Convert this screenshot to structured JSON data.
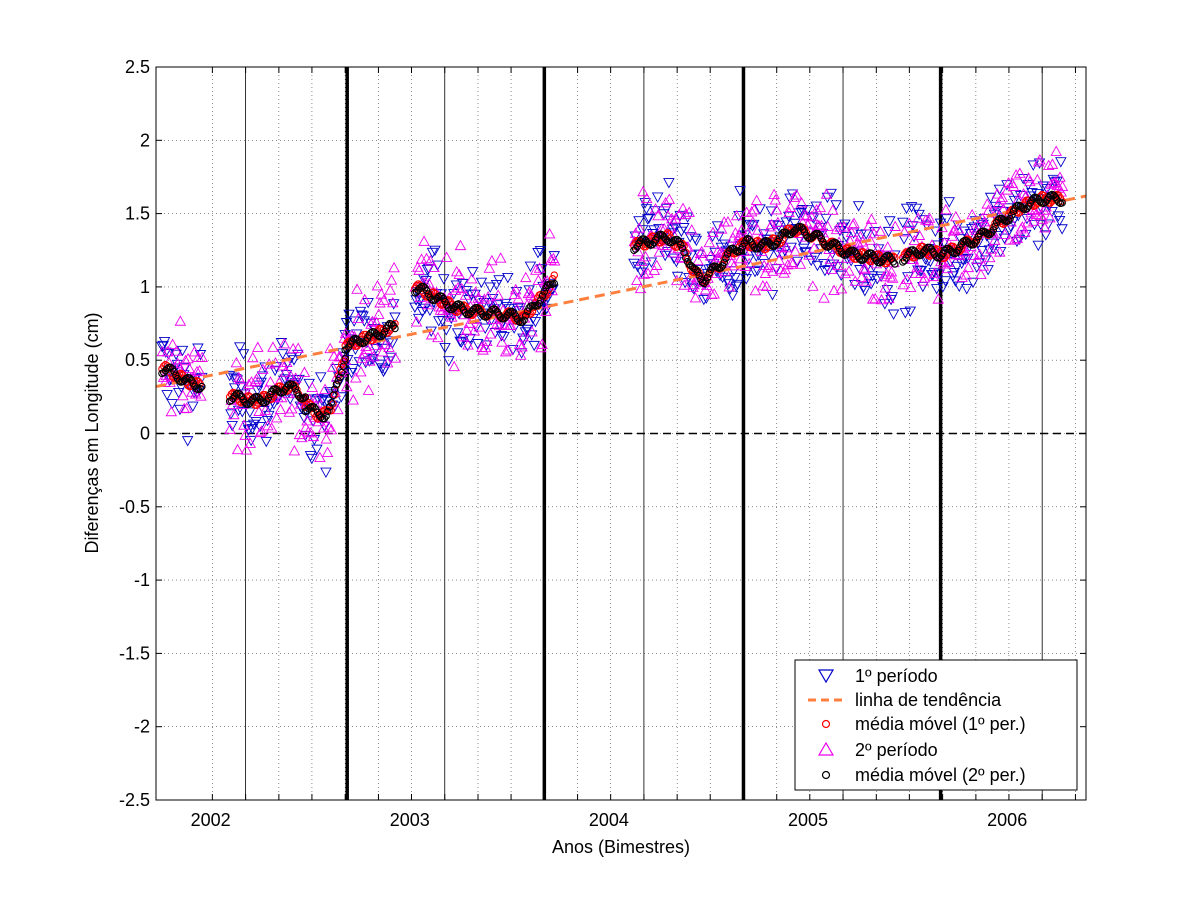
{
  "chart_data": {
    "type": "scatter",
    "xlabel": "Anos (Bimestres)",
    "ylabel": "Diferenças em Longitude (cm)",
    "xlim": [
      2001.55,
      2006.22
    ],
    "ylim": [
      -2.5,
      2.5
    ],
    "x_ticks": [
      {
        "value": 2001.833,
        "label": ""
      },
      {
        "value": 2002.0,
        "label": "2002"
      },
      {
        "value": 2002.167,
        "label": ""
      },
      {
        "value": 2002.333,
        "label": ""
      },
      {
        "value": 2002.5,
        "label": ""
      },
      {
        "value": 2002.667,
        "label": ""
      },
      {
        "value": 2002.833,
        "label": ""
      },
      {
        "value": 2003.0,
        "label": "2003"
      },
      {
        "value": 2003.167,
        "label": ""
      },
      {
        "value": 2003.333,
        "label": ""
      },
      {
        "value": 2003.5,
        "label": ""
      },
      {
        "value": 2003.667,
        "label": ""
      },
      {
        "value": 2003.833,
        "label": ""
      },
      {
        "value": 2004.0,
        "label": "2004"
      },
      {
        "value": 2004.167,
        "label": ""
      },
      {
        "value": 2004.333,
        "label": ""
      },
      {
        "value": 2004.5,
        "label": ""
      },
      {
        "value": 2004.667,
        "label": ""
      },
      {
        "value": 2004.833,
        "label": ""
      },
      {
        "value": 2005.0,
        "label": "2005"
      },
      {
        "value": 2005.167,
        "label": ""
      },
      {
        "value": 2005.333,
        "label": ""
      },
      {
        "value": 2005.5,
        "label": ""
      },
      {
        "value": 2005.667,
        "label": ""
      },
      {
        "value": 2005.833,
        "label": ""
      },
      {
        "value": 2006.0,
        "label": "2006"
      },
      {
        "value": 2006.167,
        "label": ""
      }
    ],
    "y_ticks": [
      "-2.5",
      "-2",
      "-1.5",
      "-1",
      "-0.5",
      "0",
      "0.5",
      "1",
      "1.5",
      "2",
      "2.5"
    ],
    "grid": true,
    "legend_position": "bottom-right",
    "colors": {
      "period1": "#0000cc",
      "period2": "#ee00ee",
      "trend": "#ff7f3f",
      "ma1": "#ff0000",
      "ma2": "#000000"
    },
    "legend": [
      {
        "label": "1º período",
        "marker": "triangle-down",
        "color": "#0000cc"
      },
      {
        "label": "linha de tendência",
        "marker": "dashed-line",
        "color": "#ff7f3f"
      },
      {
        "label": "média móvel (1º per.)",
        "marker": "circle",
        "color": "#ff0000"
      },
      {
        "label": "2º período",
        "marker": "triangle-up",
        "color": "#ee00ee"
      },
      {
        "label": "média móvel (2º per.)",
        "marker": "circle",
        "color": "#000000"
      }
    ],
    "reference_lines": {
      "zero_line": {
        "y": 0,
        "style": "dashed",
        "color": "#000000"
      },
      "vertical_markers": [
        2002.51,
        2003.5,
        2004.5,
        2005.49
      ]
    },
    "trend_line": {
      "x": [
        2001.55,
        2006.22
      ],
      "y": [
        0.32,
        1.62
      ]
    },
    "data_segments": [
      {
        "x": [
          2001.58,
          2001.78
        ],
        "ma": [
          [
            2001.6,
            0.44
          ],
          [
            2001.65,
            0.4
          ],
          [
            2001.7,
            0.36
          ],
          [
            2001.75,
            0.33
          ]
        ]
      },
      {
        "x": [
          2001.92,
          2002.3
        ],
        "ma": [
          [
            2001.95,
            0.25
          ],
          [
            2002.0,
            0.23
          ],
          [
            2002.05,
            0.22
          ],
          [
            2002.1,
            0.24
          ],
          [
            2002.15,
            0.28
          ],
          [
            2002.2,
            0.32
          ],
          [
            2002.25,
            0.3
          ],
          [
            2002.3,
            0.24
          ]
        ]
      },
      {
        "x": [
          2002.3,
          2002.5
        ],
        "ma": [
          [
            2002.32,
            0.18
          ],
          [
            2002.36,
            0.13
          ],
          [
            2002.4,
            0.13
          ],
          [
            2002.43,
            0.18
          ],
          [
            2002.46,
            0.35
          ],
          [
            2002.5,
            0.52
          ]
        ]
      },
      {
        "x": [
          2002.5,
          2002.75
        ],
        "ma": [
          [
            2002.52,
            0.6
          ],
          [
            2002.58,
            0.64
          ],
          [
            2002.63,
            0.66
          ],
          [
            2002.68,
            0.69
          ],
          [
            2002.72,
            0.72
          ]
        ]
      },
      {
        "x": [
          2002.85,
          2003.55
        ],
        "ma": [
          [
            2002.87,
            0.99
          ],
          [
            2002.95,
            0.93
          ],
          [
            2003.05,
            0.86
          ],
          [
            2003.15,
            0.83
          ],
          [
            2003.25,
            0.82
          ],
          [
            2003.35,
            0.8
          ],
          [
            2003.4,
            0.78
          ],
          [
            2003.45,
            0.88
          ],
          [
            2003.5,
            0.95
          ],
          [
            2003.55,
            1.05
          ]
        ]
      },
      {
        "x": [
          2003.95,
          2005.26
        ],
        "ma": [
          [
            2003.95,
            1.28
          ],
          [
            2004.05,
            1.32
          ],
          [
            2004.12,
            1.34
          ],
          [
            2004.2,
            1.26
          ],
          [
            2004.25,
            1.1
          ],
          [
            2004.3,
            1.05
          ],
          [
            2004.38,
            1.15
          ],
          [
            2004.45,
            1.25
          ],
          [
            2004.52,
            1.3
          ],
          [
            2004.6,
            1.28
          ],
          [
            2004.68,
            1.32
          ],
          [
            2004.75,
            1.4
          ],
          [
            2004.85,
            1.35
          ],
          [
            2004.95,
            1.28
          ],
          [
            2005.05,
            1.22
          ],
          [
            2005.15,
            1.2
          ],
          [
            2005.25,
            1.18
          ]
        ]
      },
      {
        "x": [
          2005.3,
          2006.1
        ],
        "ma": [
          [
            2005.3,
            1.2
          ],
          [
            2005.4,
            1.25
          ],
          [
            2005.5,
            1.22
          ],
          [
            2005.6,
            1.28
          ],
          [
            2005.7,
            1.35
          ],
          [
            2005.8,
            1.45
          ],
          [
            2005.9,
            1.55
          ],
          [
            2006.0,
            1.6
          ],
          [
            2006.05,
            1.6
          ]
        ]
      }
    ]
  }
}
